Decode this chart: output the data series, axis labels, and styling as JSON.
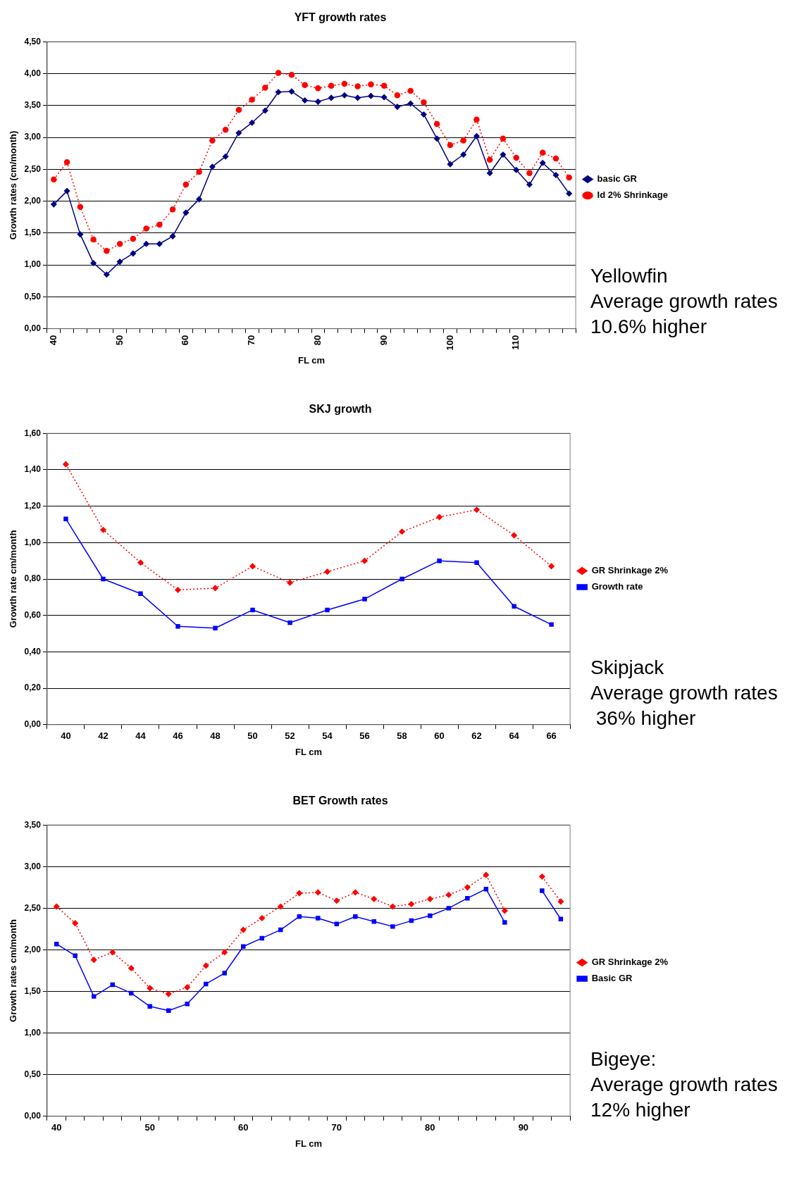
{
  "chart_data": [
    {
      "type": "line",
      "title": "YFT growth rates",
      "xlabel": "FL cm",
      "ylabel": "Growth rates (cm/month)",
      "categories": [
        "40",
        null,
        null,
        null,
        null,
        "50",
        null,
        null,
        null,
        null,
        "60",
        null,
        null,
        null,
        null,
        "70",
        null,
        null,
        null,
        null,
        "80",
        null,
        null,
        null,
        null,
        "90",
        null,
        null,
        null,
        null,
        "100",
        null,
        null,
        null,
        null,
        "110",
        null,
        null,
        null,
        null
      ],
      "series": [
        {
          "name": "basic GR",
          "color": "#000080",
          "marker": "diamond",
          "line_style": "solid",
          "values": [
            1.95,
            2.16,
            1.48,
            1.03,
            0.85,
            1.05,
            1.18,
            1.33,
            1.33,
            1.45,
            1.82,
            2.03,
            2.54,
            2.7,
            3.07,
            3.23,
            3.42,
            3.71,
            3.72,
            3.58,
            3.56,
            3.62,
            3.66,
            3.62,
            3.65,
            3.63,
            3.48,
            3.53,
            3.36,
            2.98,
            2.58,
            2.73,
            3.02,
            2.44,
            2.73,
            2.49,
            2.26,
            2.6,
            2.41,
            2.12
          ]
        },
        {
          "name": "Id 2% Shrinkage",
          "color": "#ff0000",
          "marker": "circle",
          "line_style": "dotted",
          "values": [
            2.34,
            2.61,
            1.91,
            1.4,
            1.22,
            1.33,
            1.41,
            1.57,
            1.63,
            1.87,
            2.26,
            2.46,
            2.95,
            3.12,
            3.43,
            3.59,
            3.78,
            4.01,
            3.98,
            3.82,
            3.77,
            3.81,
            3.84,
            3.8,
            3.83,
            3.81,
            3.66,
            3.73,
            3.55,
            3.21,
            2.88,
            2.95,
            3.28,
            2.65,
            2.98,
            2.68,
            2.44,
            2.76,
            2.67,
            2.37
          ]
        }
      ],
      "ylim": [
        0,
        4.5
      ],
      "yticks": [
        {
          "value": 0,
          "label": "0,00"
        },
        {
          "value": 0.5,
          "label": "0,50"
        },
        {
          "value": 1,
          "label": "1,00"
        },
        {
          "value": 1.5,
          "label": "1,50"
        },
        {
          "value": 2,
          "label": "2,00"
        },
        {
          "value": 2.5,
          "label": "2,50"
        },
        {
          "value": 3,
          "label": "3,00"
        },
        {
          "value": 3.5,
          "label": "3,50"
        },
        {
          "value": 4,
          "label": "4,00"
        },
        {
          "value": 4.5,
          "label": "4,50"
        }
      ],
      "grid": "y",
      "legend": "right",
      "annotations": [
        "Yellowfin\nAverage growth rates\n10.6% higher"
      ]
    },
    {
      "type": "line",
      "title": "SKJ growth",
      "xlabel": "FL cm",
      "ylabel": "Growth rate cm/month",
      "categories": [
        "40",
        "42",
        "44",
        "46",
        "48",
        "50",
        "52",
        "54",
        "56",
        "58",
        "60",
        "62",
        "64",
        "66"
      ],
      "series": [
        {
          "name": "GR Shrinkage 2%",
          "color": "#ff0000",
          "marker": "diamond",
          "line_style": "dotted",
          "values": [
            1.43,
            1.07,
            0.89,
            0.74,
            0.75,
            0.87,
            0.78,
            0.84,
            0.9,
            1.06,
            1.14,
            1.18,
            1.04,
            0.87
          ]
        },
        {
          "name": "Growth rate",
          "color": "#0000ff",
          "marker": "square",
          "line_style": "solid",
          "values": [
            1.13,
            0.8,
            0.72,
            0.54,
            0.53,
            0.63,
            0.56,
            0.63,
            0.69,
            0.8,
            0.9,
            0.89,
            0.65,
            0.55
          ]
        }
      ],
      "ylim": [
        0,
        1.6
      ],
      "yticks": [
        {
          "value": 0,
          "label": "0,00"
        },
        {
          "value": 0.2,
          "label": "0,20"
        },
        {
          "value": 0.4,
          "label": "0,40"
        },
        {
          "value": 0.6,
          "label": "0,60"
        },
        {
          "value": 0.8,
          "label": "0,80"
        },
        {
          "value": 1,
          "label": "1,00"
        },
        {
          "value": 1.2,
          "label": "1,20"
        },
        {
          "value": 1.4,
          "label": "1,40"
        },
        {
          "value": 1.6,
          "label": "1,60"
        }
      ],
      "grid": "y",
      "legend": "right",
      "annotations": [
        "Skipjack\nAverage growth rates\n 36% higher"
      ]
    },
    {
      "type": "line",
      "title": "BET Growth rates",
      "xlabel": "FL cm",
      "ylabel": "Growth rates cm/month",
      "categories": [
        "40",
        null,
        null,
        null,
        null,
        "50",
        null,
        null,
        null,
        null,
        "60",
        null,
        null,
        null,
        null,
        "70",
        null,
        null,
        null,
        null,
        "80",
        null,
        null,
        null,
        null,
        "90",
        null,
        null
      ],
      "series": [
        {
          "name": "GR Shrinkage 2%",
          "color": "#ff0000",
          "marker": "diamond",
          "line_style": "dotted",
          "values": [
            2.52,
            2.32,
            1.88,
            1.97,
            1.78,
            1.54,
            1.47,
            1.55,
            1.81,
            1.97,
            2.24,
            2.38,
            2.52,
            2.68,
            2.69,
            2.59,
            2.69,
            2.61,
            2.52,
            2.55,
            2.61,
            2.66,
            2.75,
            2.9,
            2.47,
            null,
            2.88,
            2.58
          ]
        },
        {
          "name": "Basic GR",
          "color": "#0000ff",
          "marker": "square",
          "line_style": "solid",
          "values": [
            2.07,
            1.93,
            1.44,
            1.58,
            1.48,
            1.32,
            1.27,
            1.35,
            1.59,
            1.72,
            2.04,
            2.14,
            2.24,
            2.4,
            2.38,
            2.31,
            2.4,
            2.34,
            2.28,
            2.35,
            2.41,
            2.5,
            2.62,
            2.73,
            2.33,
            null,
            2.71,
            2.37
          ]
        }
      ],
      "ylim": [
        0,
        3.5
      ],
      "yticks": [
        {
          "value": 0,
          "label": "0,00"
        },
        {
          "value": 0.5,
          "label": "0,50"
        },
        {
          "value": 1,
          "label": "1,00"
        },
        {
          "value": 1.5,
          "label": "1,50"
        },
        {
          "value": 2,
          "label": "2,00"
        },
        {
          "value": 2.5,
          "label": "2,50"
        },
        {
          "value": 3,
          "label": "3,00"
        },
        {
          "value": 3.5,
          "label": "3,50"
        }
      ],
      "grid": "y",
      "legend": "right",
      "annotations": [
        "Bigeye:\nAverage growth rates\n12% higher"
      ]
    }
  ]
}
